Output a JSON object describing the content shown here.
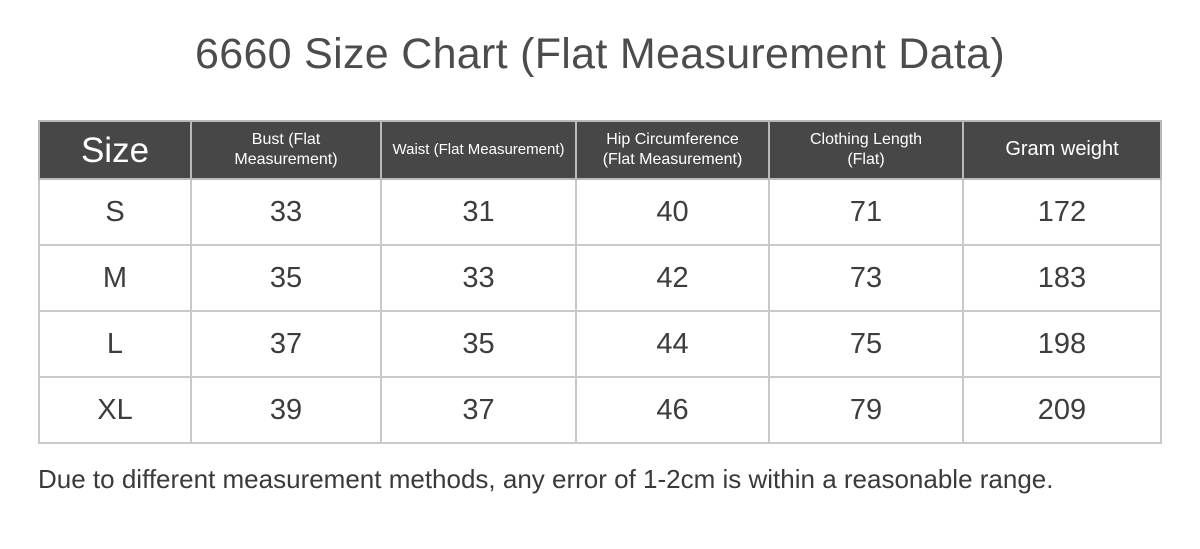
{
  "page": {
    "title": "6660 Size Chart (Flat Measurement Data)",
    "note": "Due to different measurement methods, any error of 1-2cm is within a reasonable range."
  },
  "colors": {
    "header_bg": "#474747",
    "header_text": "#ffffff",
    "body_text": "#3d3d3d",
    "border": "#c9c9c9",
    "title_text": "#4c4c4c",
    "page_bg": "#ffffff"
  },
  "table": {
    "columns": [
      {
        "id": "size",
        "line1": "Size",
        "line2": ""
      },
      {
        "id": "bust",
        "line1": "Bust (Flat",
        "line2": "Measurement)"
      },
      {
        "id": "waist",
        "line1": "Waist (Flat Measurement)",
        "line2": ""
      },
      {
        "id": "hip",
        "line1": "Hip Circumference",
        "line2": "(Flat Measurement)"
      },
      {
        "id": "length",
        "line1": "Clothing Length",
        "line2": "(Flat)"
      },
      {
        "id": "gram",
        "line1": "Gram weight",
        "line2": ""
      }
    ],
    "rows": [
      [
        "S",
        "33",
        "31",
        "40",
        "71",
        "172"
      ],
      [
        "M",
        "35",
        "33",
        "42",
        "73",
        "183"
      ],
      [
        "L",
        "37",
        "35",
        "44",
        "75",
        "198"
      ],
      [
        "XL",
        "39",
        "37",
        "46",
        "79",
        "209"
      ]
    ]
  },
  "chart_data": {
    "type": "table",
    "title": "6660 Size Chart (Flat Measurement Data)",
    "columns": [
      "Size",
      "Bust (Flat Measurement)",
      "Waist (Flat Measurement)",
      "Hip Circumference (Flat Measurement)",
      "Clothing Length (Flat)",
      "Gram weight"
    ],
    "rows": [
      [
        "S",
        33,
        31,
        40,
        71,
        172
      ],
      [
        "M",
        35,
        33,
        42,
        73,
        183
      ],
      [
        "L",
        37,
        35,
        44,
        75,
        198
      ],
      [
        "XL",
        39,
        37,
        46,
        79,
        209
      ]
    ],
    "note": "Due to different measurement methods, any error of 1-2cm is within a reasonable range."
  }
}
